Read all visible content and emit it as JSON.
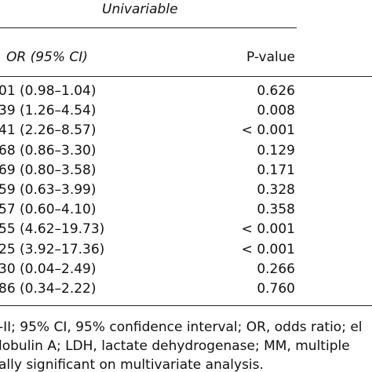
{
  "table": {
    "group_header": "Univariable",
    "columns": [
      "OR (95% CI)",
      "P-value"
    ],
    "rows": [
      [
        "01 (0.98–1.04)",
        "0.626"
      ],
      [
        "39 (1.26–4.54)",
        "0.008"
      ],
      [
        "41 (2.26–8.57)",
        "< 0.001"
      ],
      [
        "68 (0.86–3.30)",
        "0.129"
      ],
      [
        "69 (0.80–3.58)",
        "0.171"
      ],
      [
        "59 (0.63–3.99)",
        "0.328"
      ],
      [
        "57 (0.60–4.10)",
        "0.358"
      ],
      [
        "55 (4.62–19.73)",
        "< 0.001"
      ],
      [
        "25 (3.92–17.36)",
        "< 0.001"
      ],
      [
        "30 (0.04–2.49)",
        "0.266"
      ],
      [
        "86 (0.34–2.22)",
        "0.760"
      ]
    ]
  },
  "footnote": [
    "-II; 95% CI, 95% confidence interval; OR, odds ratio; el",
    "lobulin A; LDH, lactate dehydrogenase; MM, multiple",
    "ally significant on multivariate analysis."
  ]
}
